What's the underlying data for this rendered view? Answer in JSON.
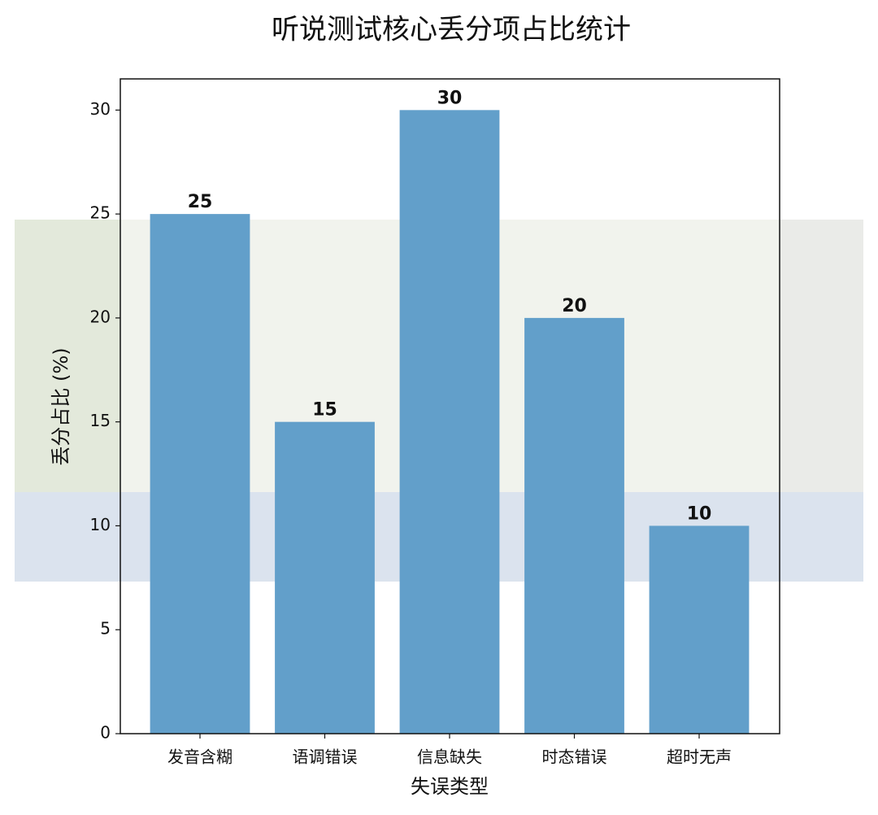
{
  "chart_data": {
    "type": "bar",
    "title": "听说测试核心丢分项占比统计",
    "x_label": "失误类型",
    "y_label": "丢分占比 (%)",
    "categories": [
      "发音含糊",
      "语调错误",
      "信息缺失",
      "时态错误",
      "超时无声"
    ],
    "values": [
      25,
      15,
      30,
      20,
      10
    ],
    "color": "#629fca",
    "ylim": [
      0,
      31.5
    ],
    "yticks": [
      0,
      5,
      10,
      15,
      20,
      25,
      30
    ],
    "grid": false
  }
}
